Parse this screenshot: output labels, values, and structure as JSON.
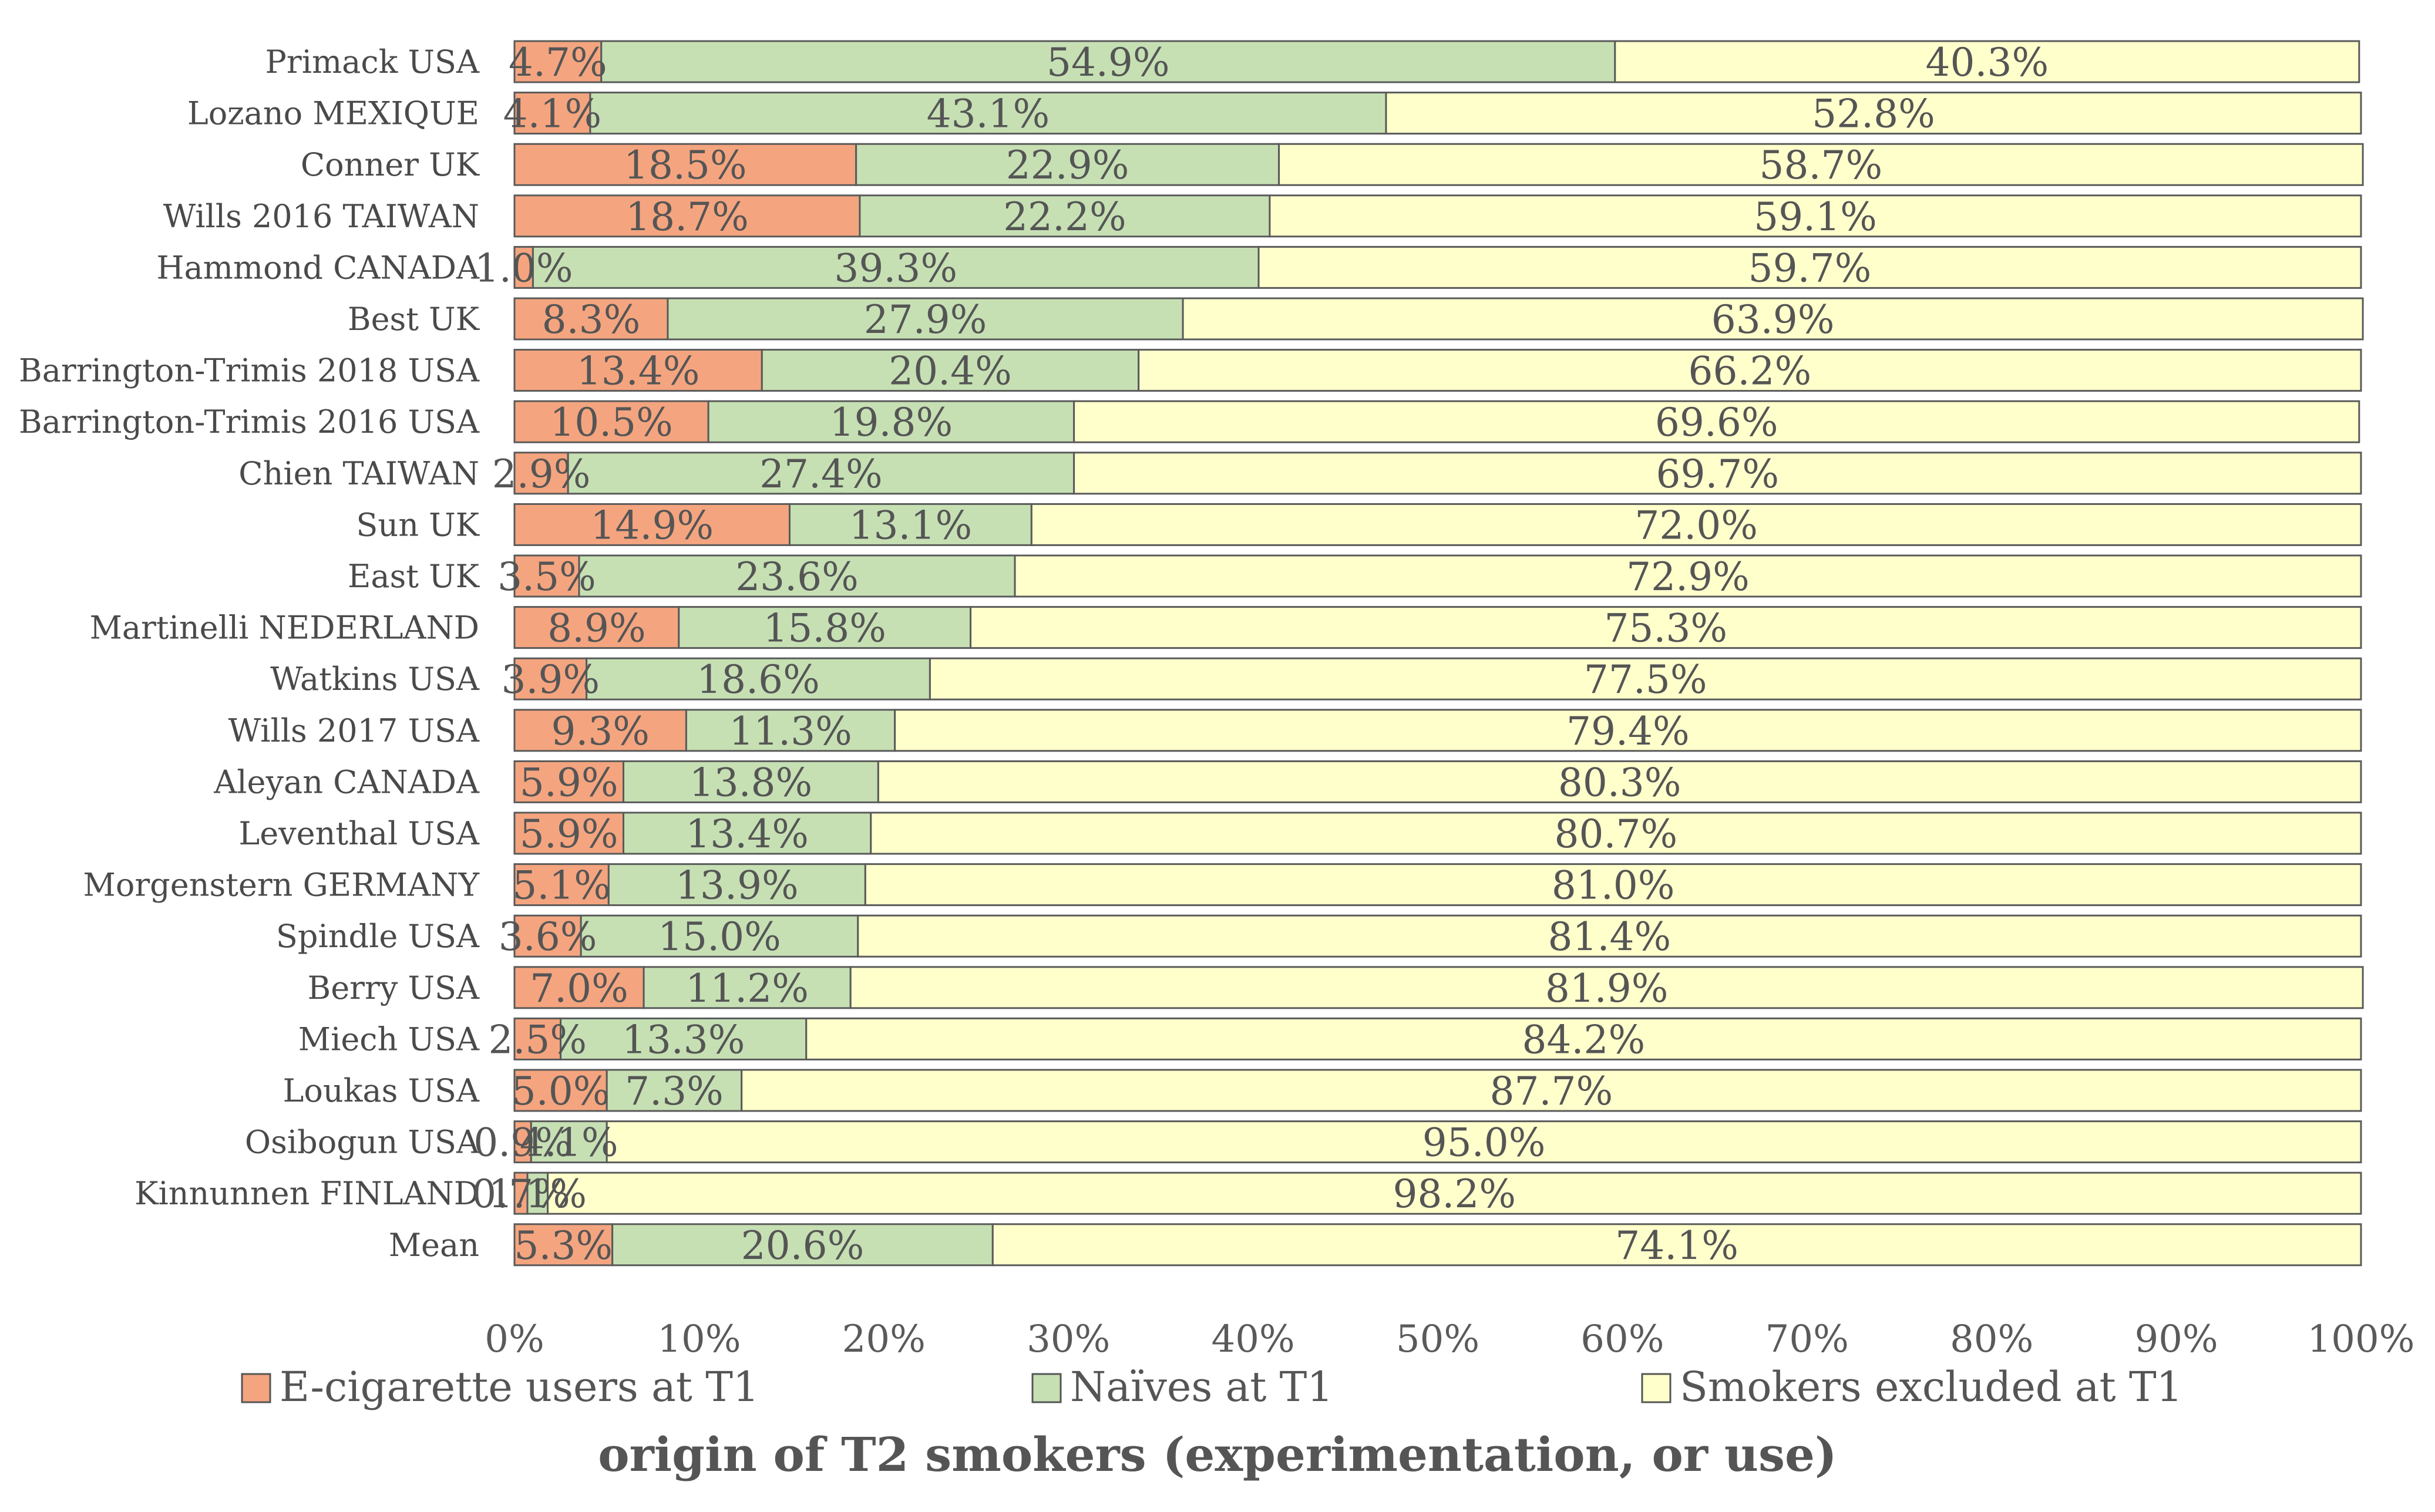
{
  "chart_data": {
    "type": "bar",
    "orientation": "horizontal",
    "stacked": "percent",
    "categories": [
      "Primack USA",
      "Lozano MEXIQUE",
      "Conner UK",
      "Wills 2016 TAIWAN",
      "Hammond CANADA",
      "Best UK",
      "Barrington-Trimis 2018 USA",
      "Barrington-Trimis 2016 USA",
      "Chien TAIWAN",
      "Sun UK",
      "East UK",
      "Martinelli NEDERLAND",
      "Watkins USA",
      "Wills 2017 USA",
      "Aleyan CANADA",
      "Leventhal USA",
      "Morgenstern GERMANY",
      "Spindle USA",
      "Berry USA",
      "Miech USA",
      "Loukas USA",
      "Osibogun USA",
      "Kinnunnen FINLAND",
      "Mean"
    ],
    "series": [
      {
        "name": "E-cigarette users at T1",
        "color": "#f4a57f",
        "values": [
          4.7,
          4.1,
          18.5,
          18.7,
          1.0,
          8.3,
          13.4,
          10.5,
          2.9,
          14.9,
          3.5,
          8.9,
          3.9,
          9.3,
          5.9,
          5.9,
          5.1,
          3.6,
          7.0,
          2.5,
          5.0,
          0.9,
          0.7,
          5.3
        ],
        "labels": [
          "4.7%",
          "4.1%",
          "18.5%",
          "18.7%",
          "1.0%",
          "8.3%",
          "13.4%",
          "10.5%",
          "2.9%",
          "14.9%",
          "3.5%",
          "8.9%",
          "3.9%",
          "9.3%",
          "5.9%",
          "5.9%",
          "5.1%",
          "3.6%",
          "7.0%",
          "2.5%",
          "5.0%",
          "0.9%",
          "0.7%",
          "5.3%"
        ]
      },
      {
        "name": "Naïves at T1",
        "color": "#c6e0b4",
        "values": [
          54.9,
          43.1,
          22.9,
          22.2,
          39.3,
          27.9,
          20.4,
          19.8,
          27.4,
          13.1,
          23.6,
          15.8,
          18.6,
          11.3,
          13.8,
          13.4,
          13.9,
          15.0,
          11.2,
          13.3,
          7.3,
          4.1,
          1.1,
          20.6
        ],
        "labels": [
          "54.9%",
          "43.1%",
          "22.9%",
          "22.2%",
          "39.3%",
          "27.9%",
          "20.4%",
          "19.8%",
          "27.4%",
          "13.1%",
          "23.6%",
          "15.8%",
          "18.6%",
          "11.3%",
          "13.8%",
          "13.4%",
          "13.9%",
          "15.0%",
          "11.2%",
          "13.3%",
          "7.3%",
          "4.1%",
          "1.1%",
          "20.6%"
        ]
      },
      {
        "name": "Smokers excluded at T1",
        "color": "#ffffcc",
        "values": [
          40.3,
          52.8,
          58.7,
          59.1,
          59.7,
          63.9,
          66.2,
          69.6,
          69.7,
          72.0,
          72.9,
          75.3,
          77.5,
          79.4,
          80.3,
          80.7,
          81.0,
          81.4,
          81.9,
          84.2,
          87.7,
          95.0,
          98.2,
          74.1
        ],
        "labels": [
          "40.3%",
          "52.8%",
          "58.7%",
          "59.1%",
          "59.7%",
          "63.9%",
          "66.2%",
          "69.6%",
          "69.7%",
          "72.0%",
          "72.9%",
          "75.3%",
          "77.5%",
          "79.4%",
          "80.3%",
          "80.7%",
          "81.0%",
          "81.4%",
          "81.9%",
          "84.2%",
          "87.7%",
          "95.0%",
          "98.2%",
          "74.1%"
        ]
      }
    ],
    "x_ticks": [
      "0%",
      "10%",
      "20%",
      "30%",
      "40%",
      "50%",
      "60%",
      "70%",
      "80%",
      "90%",
      "100%"
    ],
    "xlim": [
      0,
      100
    ],
    "xlabel": "origin of T2 smokers (experimentation, or use)",
    "legend_position": "bottom"
  }
}
